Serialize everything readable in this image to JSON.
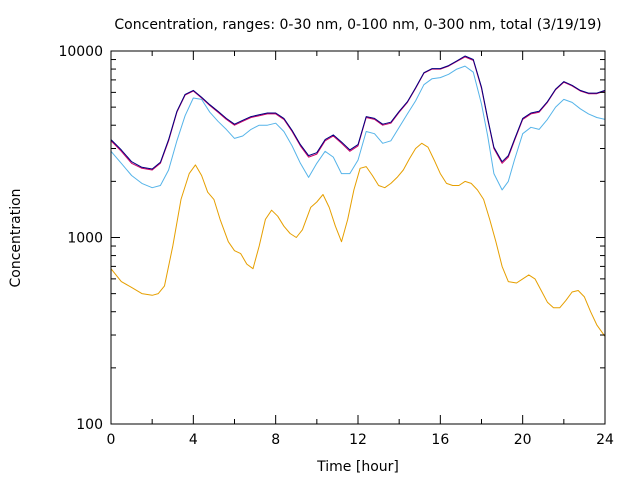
{
  "chart_data": {
    "type": "line",
    "title": "Concentration, ranges: 0-30 nm, 0-100 nm, 0-300 nm, total (3/19/19)",
    "xlabel": "Time [hour]",
    "ylabel": "Concentration",
    "xlim": [
      0,
      24
    ],
    "ylim": [
      100,
      10000
    ],
    "yscale": "log",
    "grid": false,
    "legend": "none",
    "xticks": [
      0,
      4,
      8,
      12,
      16,
      20,
      24
    ],
    "xtick_labels": [
      "0",
      "4",
      "8",
      "12",
      "16",
      "20",
      "24"
    ],
    "yticks": [
      100,
      1000,
      10000
    ],
    "ytick_labels": [
      "100",
      "1000",
      "10000"
    ],
    "series": [
      {
        "color": "#e69f00",
        "x": [
          0,
          0.5,
          1,
          1.5,
          2,
          2.3,
          2.6,
          3,
          3.4,
          3.8,
          4.1,
          4.4,
          4.7,
          5,
          5.3,
          5.7,
          6,
          6.3,
          6.6,
          6.9,
          7.2,
          7.5,
          7.8,
          8.1,
          8.4,
          8.7,
          9,
          9.3,
          9.7,
          10,
          10.3,
          10.6,
          10.9,
          11.2,
          11.5,
          11.8,
          12.1,
          12.4,
          12.7,
          13,
          13.3,
          13.6,
          13.9,
          14.2,
          14.5,
          14.8,
          15.1,
          15.4,
          15.7,
          16,
          16.3,
          16.6,
          16.9,
          17.2,
          17.5,
          17.8,
          18.1,
          18.4,
          18.7,
          19,
          19.3,
          19.7,
          20,
          20.3,
          20.6,
          20.9,
          21.2,
          21.5,
          21.8,
          22.1,
          22.4,
          22.7,
          23,
          23.3,
          23.6,
          24
        ],
        "y": [
          680,
          580,
          540,
          500,
          490,
          500,
          550,
          900,
          1600,
          2200,
          2450,
          2150,
          1750,
          1600,
          1250,
          950,
          850,
          820,
          720,
          680,
          900,
          1250,
          1400,
          1300,
          1150,
          1050,
          1000,
          1100,
          1450,
          1550,
          1700,
          1450,
          1150,
          950,
          1250,
          1800,
          2350,
          2400,
          2150,
          1900,
          1850,
          1950,
          2100,
          2300,
          2650,
          3000,
          3200,
          3050,
          2600,
          2200,
          1950,
          1900,
          1900,
          2000,
          1950,
          1800,
          1600,
          1250,
          950,
          700,
          580,
          570,
          600,
          630,
          600,
          520,
          450,
          420,
          420,
          460,
          510,
          520,
          480,
          400,
          340,
          295
        ]
      },
      {
        "color": "#56b4e9",
        "x": [
          0,
          0.5,
          1,
          1.5,
          2,
          2.4,
          2.8,
          3.2,
          3.6,
          4,
          4.4,
          4.8,
          5.2,
          5.6,
          6,
          6.4,
          6.8,
          7.2,
          7.6,
          8,
          8.4,
          8.8,
          9.2,
          9.6,
          10,
          10.4,
          10.8,
          11.2,
          11.6,
          12,
          12.4,
          12.8,
          13.2,
          13.6,
          14,
          14.4,
          14.8,
          15.2,
          15.6,
          16,
          16.4,
          16.8,
          17.2,
          17.6,
          18,
          18.3,
          18.6,
          19,
          19.3,
          19.6,
          20,
          20.4,
          20.8,
          21.2,
          21.6,
          22,
          22.4,
          22.8,
          23.2,
          23.6,
          24
        ],
        "y": [
          2900,
          2500,
          2150,
          1950,
          1850,
          1900,
          2300,
          3300,
          4500,
          5600,
          5500,
          4700,
          4200,
          3800,
          3400,
          3500,
          3800,
          4000,
          4000,
          4100,
          3700,
          3100,
          2500,
          2100,
          2500,
          2900,
          2700,
          2200,
          2200,
          2600,
          3700,
          3600,
          3200,
          3300,
          3900,
          4600,
          5400,
          6600,
          7100,
          7200,
          7500,
          8000,
          8300,
          7700,
          5200,
          3500,
          2200,
          1800,
          2000,
          2600,
          3600,
          3900,
          3800,
          4300,
          5000,
          5500,
          5300,
          4900,
          4600,
          4400,
          4300
        ]
      },
      {
        "color": "#cc0066",
        "x": [
          0,
          0.5,
          1,
          1.5,
          2,
          2.4,
          2.8,
          3.2,
          3.6,
          4,
          4.4,
          4.8,
          5.2,
          5.6,
          6,
          6.4,
          6.8,
          7.2,
          7.6,
          8,
          8.4,
          8.8,
          9.2,
          9.6,
          10,
          10.4,
          10.8,
          11.2,
          11.6,
          12,
          12.4,
          12.8,
          13.2,
          13.6,
          14,
          14.4,
          14.8,
          15.2,
          15.6,
          16,
          16.4,
          16.8,
          17.2,
          17.6,
          18,
          18.3,
          18.6,
          19,
          19.3,
          19.6,
          20,
          20.4,
          20.8,
          21.2,
          21.6,
          22,
          22.4,
          22.8,
          23.2,
          23.6,
          24
        ],
        "y": [
          3300,
          2900,
          2500,
          2350,
          2300,
          2500,
          3300,
          4700,
          5800,
          6100,
          5600,
          5100,
          4700,
          4300,
          4000,
          4200,
          4400,
          4500,
          4600,
          4600,
          4300,
          3700,
          3100,
          2700,
          2800,
          3300,
          3500,
          3200,
          2900,
          3100,
          4400,
          4300,
          4000,
          4100,
          4700,
          5300,
          6300,
          7600,
          8000,
          8000,
          8300,
          8800,
          9300,
          8900,
          6300,
          4300,
          3000,
          2500,
          2700,
          3300,
          4300,
          4600,
          4700,
          5300,
          6200,
          6800,
          6500,
          6100,
          5900,
          5900,
          6100
        ]
      },
      {
        "color": "#000080",
        "x": [
          0,
          0.5,
          1,
          1.5,
          2,
          2.4,
          2.8,
          3.2,
          3.6,
          4,
          4.4,
          4.8,
          5.2,
          5.6,
          6,
          6.4,
          6.8,
          7.2,
          7.6,
          8,
          8.4,
          8.8,
          9.2,
          9.6,
          10,
          10.4,
          10.8,
          11.2,
          11.6,
          12,
          12.4,
          12.8,
          13.2,
          13.6,
          14,
          14.4,
          14.8,
          15.2,
          15.6,
          16,
          16.4,
          16.8,
          17.2,
          17.6,
          18,
          18.3,
          18.6,
          19,
          19.3,
          19.6,
          20,
          20.4,
          20.8,
          21.2,
          21.6,
          22,
          22.4,
          22.8,
          23.2,
          23.6,
          24
        ],
        "y": [
          3350,
          2950,
          2550,
          2380,
          2330,
          2530,
          3350,
          4750,
          5850,
          6150,
          5650,
          5150,
          4750,
          4350,
          4050,
          4250,
          4450,
          4550,
          4650,
          4650,
          4350,
          3750,
          3150,
          2750,
          2850,
          3350,
          3550,
          3250,
          2950,
          3150,
          4450,
          4350,
          4050,
          4150,
          4750,
          5350,
          6350,
          7650,
          8050,
          8050,
          8350,
          8850,
          9400,
          9000,
          6400,
          4350,
          3050,
          2550,
          2750,
          3350,
          4350,
          4650,
          4750,
          5350,
          6250,
          6850,
          6550,
          6150,
          5950,
          5950,
          6150
        ]
      }
    ]
  }
}
